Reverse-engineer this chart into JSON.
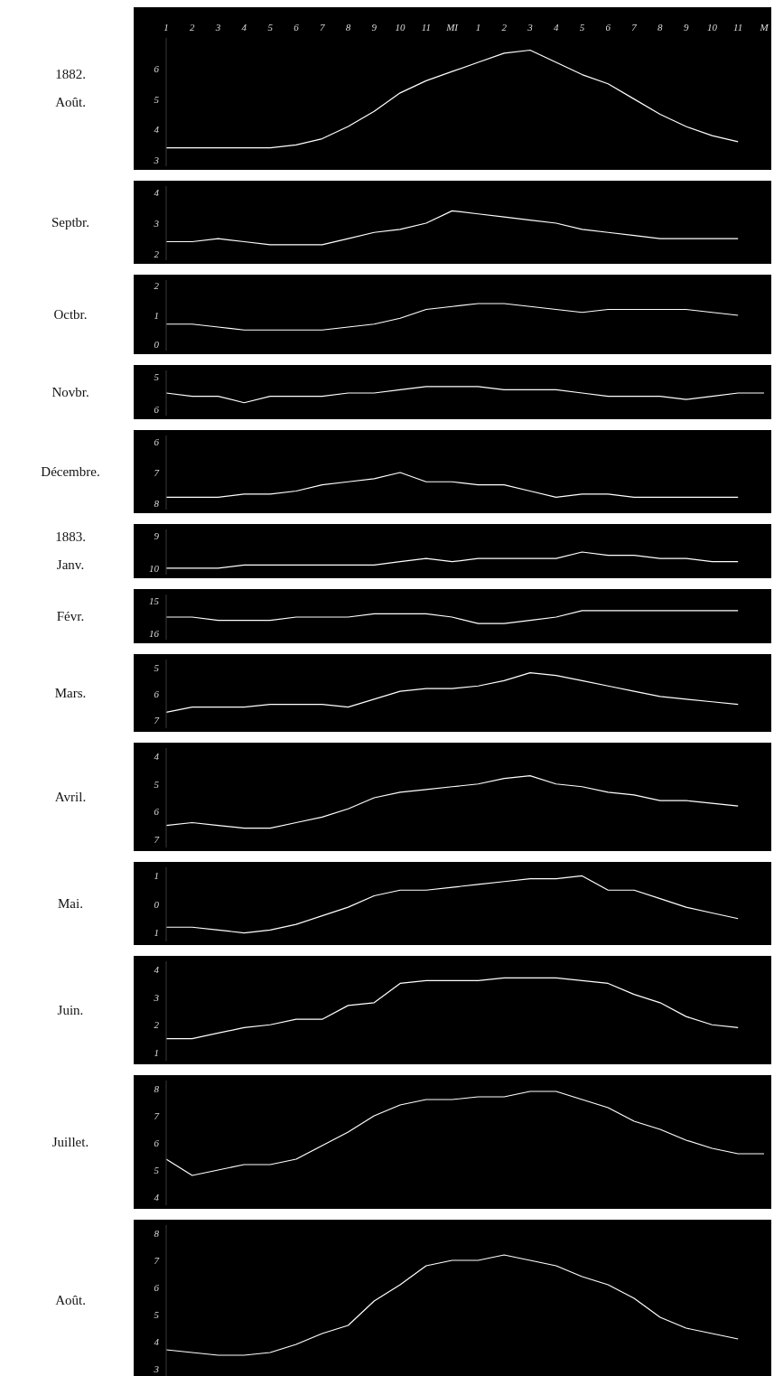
{
  "chart_data": [
    {
      "type": "line",
      "subtitle": "1882.",
      "title": "Août.",
      "categories": [
        "1",
        "2",
        "3",
        "4",
        "5",
        "6",
        "7",
        "8",
        "9",
        "10",
        "11",
        "MI",
        "1",
        "2",
        "3",
        "4",
        "5",
        "6",
        "7",
        "8",
        "9",
        "10",
        "11",
        "M"
      ],
      "color": "#ffffff",
      "values": [
        3.4,
        3.4,
        3.4,
        3.4,
        3.4,
        3.5,
        3.7,
        4.1,
        4.6,
        5.2,
        5.6,
        5.9,
        6.2,
        6.5,
        6.6,
        6.2,
        5.8,
        5.5,
        5.0,
        4.5,
        4.1,
        3.8,
        3.6,
        null
      ],
      "ylim": [
        2.8,
        7
      ],
      "yticks": [
        6,
        5,
        4,
        3
      ]
    },
    {
      "type": "line",
      "title": "Septbr.",
      "categories": [
        null,
        null,
        null,
        null,
        null,
        null,
        null,
        null,
        null,
        null,
        null,
        null,
        null,
        null,
        null,
        null,
        null,
        null,
        null,
        null,
        null,
        null,
        null,
        null
      ],
      "color": "#ffffff",
      "values": [
        2.4,
        2.4,
        2.5,
        2.4,
        2.3,
        2.3,
        2.3,
        2.5,
        2.7,
        2.8,
        3.0,
        3.4,
        3.3,
        3.2,
        3.1,
        3.0,
        2.8,
        2.7,
        2.6,
        2.5,
        2.5,
        2.5,
        2.5,
        null
      ],
      "ylim": [
        1.8,
        4.2
      ],
      "yticks": [
        4,
        3,
        2
      ],
      "tick_labels": "y"
    },
    {
      "type": "line",
      "title": "Octbr.",
      "categories": [
        null,
        null,
        null,
        null,
        null,
        null,
        null,
        null,
        null,
        null,
        null,
        null,
        null,
        null,
        null,
        null,
        null,
        null,
        null,
        null,
        null,
        null,
        null,
        null
      ],
      "color": "#ffffff",
      "values": [
        0.7,
        0.7,
        0.6,
        0.5,
        0.5,
        0.5,
        0.5,
        0.6,
        0.7,
        0.9,
        1.2,
        1.3,
        1.4,
        1.4,
        1.3,
        1.2,
        1.1,
        1.2,
        1.2,
        1.2,
        1.2,
        1.1,
        1.0,
        null
      ],
      "ylim": [
        -0.2,
        2.2
      ],
      "yticks": [
        2,
        1,
        0
      ],
      "tick_labels": "y"
    },
    {
      "type": "line",
      "title": "Novbr.",
      "categories": [
        null,
        null,
        null,
        null,
        null,
        null,
        null,
        null,
        null,
        null,
        null,
        null,
        null,
        null,
        null,
        null,
        null,
        null,
        null,
        null,
        null,
        null,
        null,
        null
      ],
      "color": "#ffffff",
      "values": [
        5.5,
        5.6,
        5.6,
        5.8,
        5.6,
        5.6,
        5.6,
        5.5,
        5.5,
        5.4,
        5.3,
        5.3,
        5.3,
        5.4,
        5.4,
        5.4,
        5.5,
        5.6,
        5.6,
        5.6,
        5.7,
        5.6,
        5.5,
        5.5
      ],
      "ylim": [
        6.2,
        4.8
      ],
      "yticks": [
        5,
        6
      ],
      "tick_labels": "y"
    },
    {
      "type": "line",
      "title": "Décembre.",
      "categories": [
        null,
        null,
        null,
        null,
        null,
        null,
        null,
        null,
        null,
        null,
        null,
        null,
        null,
        null,
        null,
        null,
        null,
        null,
        null,
        null,
        null,
        null,
        null,
        null
      ],
      "color": "#ffffff",
      "values": [
        7.8,
        7.8,
        7.8,
        7.7,
        7.7,
        7.6,
        7.4,
        7.3,
        7.2,
        7.0,
        7.3,
        7.3,
        7.4,
        7.4,
        7.6,
        7.8,
        7.7,
        7.7,
        7.8,
        7.8,
        7.8,
        7.8,
        7.8,
        null
      ],
      "ylim": [
        8.2,
        5.8
      ],
      "yticks": [
        6,
        7,
        8
      ],
      "tick_labels": "y"
    },
    {
      "type": "line",
      "subtitle": "1883.",
      "title": "Janv.",
      "categories": [
        null,
        null,
        null,
        null,
        null,
        null,
        null,
        null,
        null,
        null,
        null,
        null,
        null,
        null,
        null,
        null,
        null,
        null,
        null,
        null,
        null,
        null,
        null,
        null
      ],
      "color": "#ffffff",
      "values": [
        10.0,
        10.0,
        10.0,
        9.9,
        9.9,
        9.9,
        9.9,
        9.9,
        9.9,
        9.8,
        9.7,
        9.8,
        9.7,
        9.7,
        9.7,
        9.7,
        9.5,
        9.6,
        9.6,
        9.7,
        9.7,
        9.8,
        9.8,
        null
      ],
      "ylim": [
        10.2,
        8.8
      ],
      "yticks": [
        9,
        10
      ],
      "tick_labels": "y"
    },
    {
      "type": "line",
      "title": "Févr.",
      "categories": [
        null,
        null,
        null,
        null,
        null,
        null,
        null,
        null,
        null,
        null,
        null,
        null,
        null,
        null,
        null,
        null,
        null,
        null,
        null,
        null,
        null,
        null,
        null,
        null
      ],
      "color": "#ffffff",
      "values": [
        15.5,
        15.5,
        15.6,
        15.6,
        15.6,
        15.5,
        15.5,
        15.5,
        15.4,
        15.4,
        15.4,
        15.5,
        15.7,
        15.7,
        15.6,
        15.5,
        15.3,
        15.3,
        15.3,
        15.3,
        15.3,
        15.3,
        15.3,
        null
      ],
      "ylim": [
        16.2,
        14.8
      ],
      "yticks": [
        15,
        16
      ],
      "tick_labels": "y"
    },
    {
      "type": "line",
      "title": "Mars.",
      "categories": [
        null,
        null,
        null,
        null,
        null,
        null,
        null,
        null,
        null,
        null,
        null,
        null,
        null,
        null,
        null,
        null,
        null,
        null,
        null,
        null,
        null,
        null,
        null,
        null
      ],
      "color": "#ffffff",
      "values": [
        6.7,
        6.5,
        6.5,
        6.5,
        6.4,
        6.4,
        6.4,
        6.5,
        6.2,
        5.9,
        5.8,
        5.8,
        5.7,
        5.5,
        5.2,
        5.3,
        5.5,
        5.7,
        5.9,
        6.1,
        6.2,
        6.3,
        6.4,
        null
      ],
      "ylim": [
        7.3,
        4.7
      ],
      "yticks": [
        5,
        6,
        7
      ],
      "tick_labels": "y"
    },
    {
      "type": "line",
      "title": "Avril.",
      "categories": [
        null,
        null,
        null,
        null,
        null,
        null,
        null,
        null,
        null,
        null,
        null,
        null,
        null,
        null,
        null,
        null,
        null,
        null,
        null,
        null,
        null,
        null,
        null,
        null
      ],
      "color": "#ffffff",
      "values": [
        6.5,
        6.4,
        6.5,
        6.6,
        6.6,
        6.4,
        6.2,
        5.9,
        5.5,
        5.3,
        5.2,
        5.1,
        5.0,
        4.8,
        4.7,
        5.0,
        5.1,
        5.3,
        5.4,
        5.6,
        5.6,
        5.7,
        5.8,
        null
      ],
      "ylim": [
        7.3,
        3.7
      ],
      "yticks": [
        4,
        5,
        6,
        7
      ],
      "tick_labels": "y"
    },
    {
      "type": "line",
      "title": "Mai.",
      "categories": [
        null,
        null,
        null,
        null,
        null,
        null,
        null,
        null,
        null,
        null,
        null,
        null,
        null,
        null,
        null,
        null,
        null,
        null,
        null,
        null,
        null,
        null,
        null,
        null
      ],
      "color": "#ffffff",
      "values": [
        -0.8,
        -0.8,
        -0.9,
        -1.0,
        -0.9,
        -0.7,
        -0.4,
        -0.1,
        0.3,
        0.5,
        0.5,
        0.6,
        0.7,
        0.8,
        0.9,
        0.9,
        1.0,
        0.5,
        0.5,
        0.2,
        -0.1,
        -0.3,
        -0.5,
        null
      ],
      "ylim": [
        -1.3,
        1.3
      ],
      "yticks": [
        1,
        0,
        {
          "value": -1,
          "label": "1"
        }
      ],
      "tick_labels": "y"
    },
    {
      "type": "line",
      "title": "Juin.",
      "categories": [
        null,
        null,
        null,
        null,
        null,
        null,
        null,
        null,
        null,
        null,
        null,
        null,
        null,
        null,
        null,
        null,
        null,
        null,
        null,
        null,
        null,
        null,
        null,
        null
      ],
      "color": "#ffffff",
      "values": [
        1.5,
        1.5,
        1.7,
        1.9,
        2.0,
        2.2,
        2.2,
        2.7,
        2.8,
        3.5,
        3.6,
        3.6,
        3.6,
        3.7,
        3.7,
        3.7,
        3.6,
        3.5,
        3.1,
        2.8,
        2.3,
        2.0,
        1.9,
        null
      ],
      "ylim": [
        0.7,
        4.3
      ],
      "yticks": [
        4,
        3,
        2,
        1
      ],
      "tick_labels": "y"
    },
    {
      "type": "line",
      "title": "Juillet.",
      "categories": [
        null,
        null,
        null,
        null,
        null,
        null,
        null,
        null,
        null,
        null,
        null,
        null,
        null,
        null,
        null,
        null,
        null,
        null,
        null,
        null,
        null,
        null,
        null,
        null
      ],
      "color": "#ffffff",
      "values": [
        5.4,
        4.8,
        5.0,
        5.2,
        5.2,
        5.4,
        5.9,
        6.4,
        7.0,
        7.4,
        7.6,
        7.6,
        7.7,
        7.7,
        7.9,
        7.9,
        7.6,
        7.3,
        6.8,
        6.5,
        6.1,
        5.8,
        5.6,
        5.6
      ],
      "ylim": [
        3.7,
        8.3
      ],
      "yticks": [
        8,
        7,
        6,
        5,
        4
      ],
      "tick_labels": "y"
    },
    {
      "type": "line",
      "title": "Août.",
      "categories": [
        null,
        null,
        null,
        null,
        null,
        null,
        null,
        null,
        null,
        null,
        null,
        null,
        null,
        null,
        null,
        null,
        null,
        null,
        null,
        null,
        null,
        null,
        null,
        null
      ],
      "color": "#ffffff",
      "values": [
        3.7,
        3.6,
        3.5,
        3.5,
        3.6,
        3.9,
        4.3,
        4.6,
        5.5,
        6.1,
        6.8,
        7.0,
        7.0,
        7.2,
        7.0,
        6.8,
        6.4,
        6.1,
        5.6,
        4.9,
        4.5,
        4.3,
        4.1,
        null
      ],
      "ylim": [
        2.7,
        8.3
      ],
      "yticks": [
        8,
        7,
        6,
        5,
        4,
        3
      ],
      "tick_labels": "y"
    }
  ]
}
